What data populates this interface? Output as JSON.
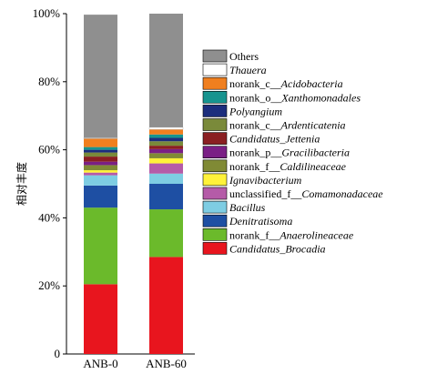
{
  "chart_data": {
    "type": "bar",
    "stacked": true,
    "title": "",
    "xlabel": "",
    "ylabel": "相对丰度",
    "ylim": [
      0,
      100
    ],
    "ytick_labels": [
      "0",
      "20%",
      "40%",
      "60%",
      "80%",
      "100%"
    ],
    "categories": [
      "ANB-0",
      "ANB-60"
    ],
    "legend_position": "right",
    "grid": false,
    "series": [
      {
        "name": "Candidatus_Brocadia",
        "plain": "",
        "ital": "Candidatus_Brocadia",
        "color": "#e8151e",
        "values": [
          20.5,
          28.5
        ]
      },
      {
        "name": "norank_f__Anaerolineaceae",
        "plain": "norank_f__",
        "ital": "Anaerolineaceae",
        "color": "#6bba2b",
        "values": [
          22.5,
          14.0
        ]
      },
      {
        "name": "Denitratisoma",
        "plain": "",
        "ital": "Denitratisoma",
        "color": "#1e4fa3",
        "values": [
          6.5,
          7.5
        ]
      },
      {
        "name": "Bacillus",
        "plain": "",
        "ital": "Bacillus",
        "color": "#7ecde3",
        "values": [
          3.0,
          3.0
        ]
      },
      {
        "name": "unclassified_f__Comamonadaceae",
        "plain": "unclassified_f__",
        "ital": "Comamonadaceae",
        "color": "#b55ba8",
        "values": [
          0.8,
          3.0
        ]
      },
      {
        "name": "Ignavibacterium",
        "plain": "",
        "ital": "Ignavibacterium",
        "color": "#fff23a",
        "values": [
          0.7,
          1.5
        ]
      },
      {
        "name": "norank_f__Caldilineaceae",
        "plain": "norank_f__",
        "ital": "Caldilineaceae",
        "color": "#808a35",
        "values": [
          1.5,
          1.5
        ]
      },
      {
        "name": "norank_p__Gracilibacteria",
        "plain": "norank_p__",
        "ital": "Gracilibacteria",
        "color": "#7a1f85",
        "values": [
          1.0,
          1.2
        ]
      },
      {
        "name": "Candidatus_Jettenia",
        "plain": "",
        "ital": "Candidatus_Jettenia",
        "color": "#8a1f22",
        "values": [
          1.5,
          1.0
        ]
      },
      {
        "name": "norank_c__Ardenticatenia",
        "plain": "norank_c__",
        "ital": "Ardenticatenia",
        "color": "#7a8a3a",
        "values": [
          1.2,
          1.3
        ]
      },
      {
        "name": "Polyangium",
        "plain": "",
        "ital": "Polyangium",
        "color": "#1c2d7d",
        "values": [
          0.8,
          1.0
        ]
      },
      {
        "name": "norank_o__Xanthomonadales",
        "plain": "norank_o__",
        "ital": "Xanthomonadales",
        "color": "#17948f",
        "values": [
          0.8,
          1.0
        ]
      },
      {
        "name": "norank_c__Acidobacteria",
        "plain": "norank_c__",
        "ital": "Acidobacteria",
        "color": "#f07f1f",
        "values": [
          2.5,
          1.5
        ]
      },
      {
        "name": "Thauera",
        "plain": "",
        "ital": "Thauera",
        "color": "#ffffff",
        "values": [
          0.2,
          0.6
        ]
      },
      {
        "name": "Others",
        "plain": "Others",
        "ital": "",
        "color": "#8f8f8f",
        "values": [
          36.2,
          33.4
        ]
      }
    ]
  }
}
